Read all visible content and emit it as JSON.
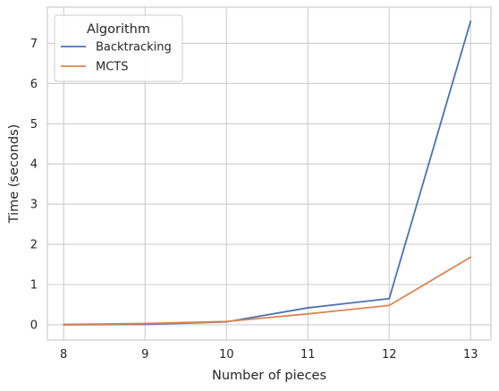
{
  "chart_data": {
    "type": "line",
    "xlabel": "Number of pieces",
    "ylabel": "Time (seconds)",
    "x": [
      8,
      9,
      10,
      11,
      12,
      13
    ],
    "xlim": [
      7.8,
      13.25
    ],
    "ylim": [
      -0.38,
      7.9
    ],
    "xticks": [
      8,
      9,
      10,
      11,
      12,
      13
    ],
    "yticks": [
      0,
      1,
      2,
      3,
      4,
      5,
      6,
      7
    ],
    "grid": true,
    "legend": {
      "title": "Algorithm",
      "placement": "top-left"
    },
    "series": [
      {
        "name": "Backtracking",
        "color": "#4c72b0",
        "values": [
          0.0,
          0.01,
          0.07,
          0.42,
          0.65,
          7.55
        ]
      },
      {
        "name": "MCTS",
        "color": "#dd8452",
        "values": [
          0.01,
          0.03,
          0.08,
          0.27,
          0.48,
          1.68
        ]
      }
    ]
  }
}
